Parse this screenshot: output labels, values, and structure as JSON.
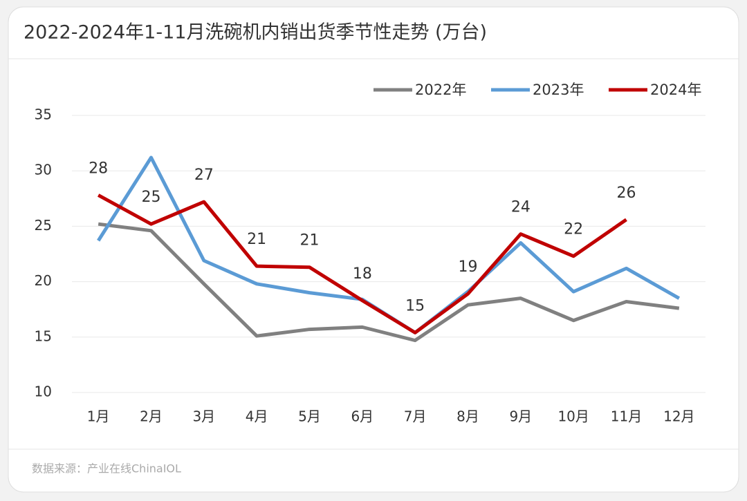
{
  "chart_data": {
    "type": "line",
    "title": "2022-2024年1-11月洗碗机内销出货季节性走势 (万台)",
    "source": "数据来源：产业在线ChinaIOL",
    "categories": [
      "1月",
      "2月",
      "3月",
      "4月",
      "5月",
      "6月",
      "7月",
      "8月",
      "9月",
      "10月",
      "11月",
      "12月"
    ],
    "series": [
      {
        "name": "2022年",
        "color": "#808080",
        "values": [
          25.2,
          24.6,
          19.8,
          15.1,
          15.7,
          15.9,
          14.7,
          17.9,
          18.5,
          16.5,
          18.2,
          17.6
        ]
      },
      {
        "name": "2023年",
        "color": "#5b9bd5",
        "values": [
          23.7,
          31.2,
          21.9,
          19.8,
          19.0,
          18.4,
          15.4,
          19.1,
          23.5,
          19.1,
          21.2,
          18.5
        ]
      },
      {
        "name": "2024年",
        "color": "#c00000",
        "values": [
          27.8,
          25.2,
          27.2,
          21.4,
          21.3,
          18.3,
          15.4,
          18.9,
          24.3,
          22.3,
          25.6,
          null
        ],
        "value_labels": [
          "28",
          "25",
          "27",
          "21",
          "21",
          "18",
          "15",
          "19",
          "24",
          "22",
          "26",
          null
        ]
      }
    ],
    "ylim": [
      10,
      35
    ],
    "yticks": [
      10,
      15,
      20,
      25,
      30,
      35
    ],
    "grid": true,
    "legend": "top-right"
  }
}
